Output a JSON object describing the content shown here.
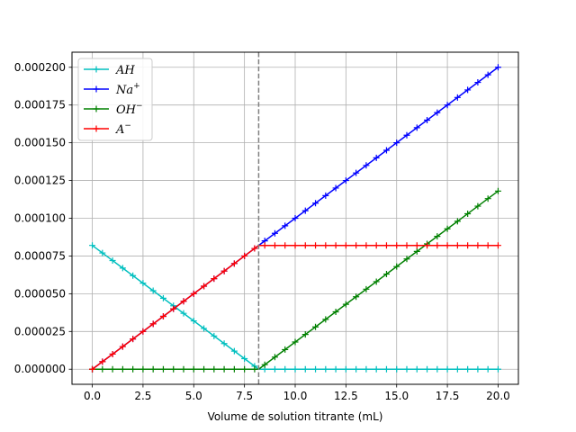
{
  "chart_data": {
    "type": "line",
    "xlabel": "Volume de solution titrante (mL)",
    "ylabel": "",
    "xlim": [
      -1.0,
      21.0
    ],
    "ylim": [
      -1e-05,
      0.00021
    ],
    "xticks": [
      0.0,
      2.5,
      5.0,
      7.5,
      10.0,
      12.5,
      15.0,
      17.5,
      20.0
    ],
    "xtick_labels": [
      "0.0",
      "2.5",
      "5.0",
      "7.5",
      "10.0",
      "12.5",
      "15.0",
      "17.5",
      "20.0"
    ],
    "yticks": [
      0,
      2.5e-05,
      5e-05,
      7.5e-05,
      0.0001,
      0.000125,
      0.00015,
      0.000175,
      0.0002
    ],
    "ytick_labels": [
      "0.000000",
      "0.000025",
      "0.000050",
      "0.000075",
      "0.000100",
      "0.000125",
      "0.000150",
      "0.000175",
      "0.000200"
    ],
    "grid": true,
    "legend_position": "top-left",
    "equivalence_volume": 8.2,
    "vline_color": "#808080",
    "x_start": 0,
    "x_end": 20,
    "n_points": 41,
    "series": [
      {
        "name": "AH",
        "name_base": "AH",
        "name_sup": "",
        "color": "#00bfbf",
        "points": [
          [
            0,
            8.2e-05
          ],
          [
            8.2,
            0
          ],
          [
            20,
            0
          ]
        ]
      },
      {
        "name": "Na+",
        "name_base": "Na",
        "name_sup": "+",
        "color": "#0000ff",
        "points": [
          [
            0,
            0
          ],
          [
            20,
            0.0002
          ]
        ]
      },
      {
        "name": "OH−",
        "name_base": "OH",
        "name_sup": "−",
        "color": "#008000",
        "points": [
          [
            0,
            0
          ],
          [
            8.2,
            0
          ],
          [
            20,
            0.000118
          ]
        ]
      },
      {
        "name": "A−",
        "name_base": "A",
        "name_sup": "−",
        "color": "#ff0000",
        "points": [
          [
            0,
            0
          ],
          [
            8.2,
            8.2e-05
          ],
          [
            20,
            8.2e-05
          ]
        ]
      }
    ]
  }
}
